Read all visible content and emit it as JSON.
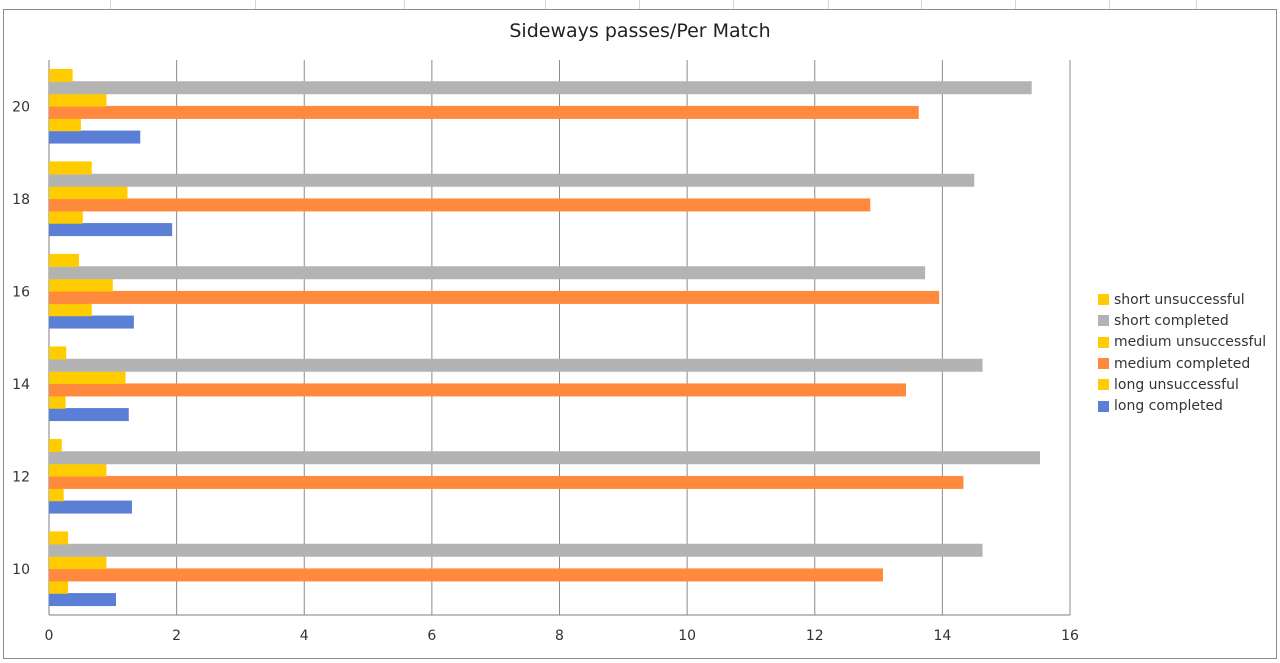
{
  "chart_data": {
    "type": "bar",
    "orientation": "horizontal",
    "title": "Sideways passes/Per Match",
    "xlabel": "",
    "ylabel": "",
    "xlim": [
      0,
      16
    ],
    "x_ticks": [
      "0",
      "2",
      "4",
      "6",
      "8",
      "10",
      "12",
      "14",
      "16"
    ],
    "categories": [
      "10",
      "12",
      "14",
      "16",
      "18",
      "20"
    ],
    "grid": "vertical",
    "legend_position": "right",
    "series": [
      {
        "name": "long completed",
        "color": "#5B7FD6",
        "values": [
          1.05,
          1.3,
          1.25,
          1.33,
          1.93,
          1.43
        ]
      },
      {
        "name": "long unsuccessful",
        "color": "#FFCC00",
        "values": [
          0.3,
          0.23,
          0.26,
          0.67,
          0.53,
          0.5
        ]
      },
      {
        "name": "medium completed",
        "color": "#FF8A3D",
        "values": [
          13.07,
          14.33,
          13.43,
          13.95,
          12.87,
          13.63
        ]
      },
      {
        "name": "medium unsuccessful",
        "color": "#FFCC00",
        "values": [
          0.9,
          0.9,
          1.2,
          1.0,
          1.23,
          0.9
        ]
      },
      {
        "name": "short completed",
        "color": "#B3B3B3",
        "values": [
          14.63,
          15.53,
          14.63,
          13.73,
          14.5,
          15.4
        ]
      },
      {
        "name": "short unsuccessful",
        "color": "#FFCC00",
        "values": [
          0.3,
          0.2,
          0.27,
          0.47,
          0.67,
          0.37
        ]
      }
    ]
  }
}
